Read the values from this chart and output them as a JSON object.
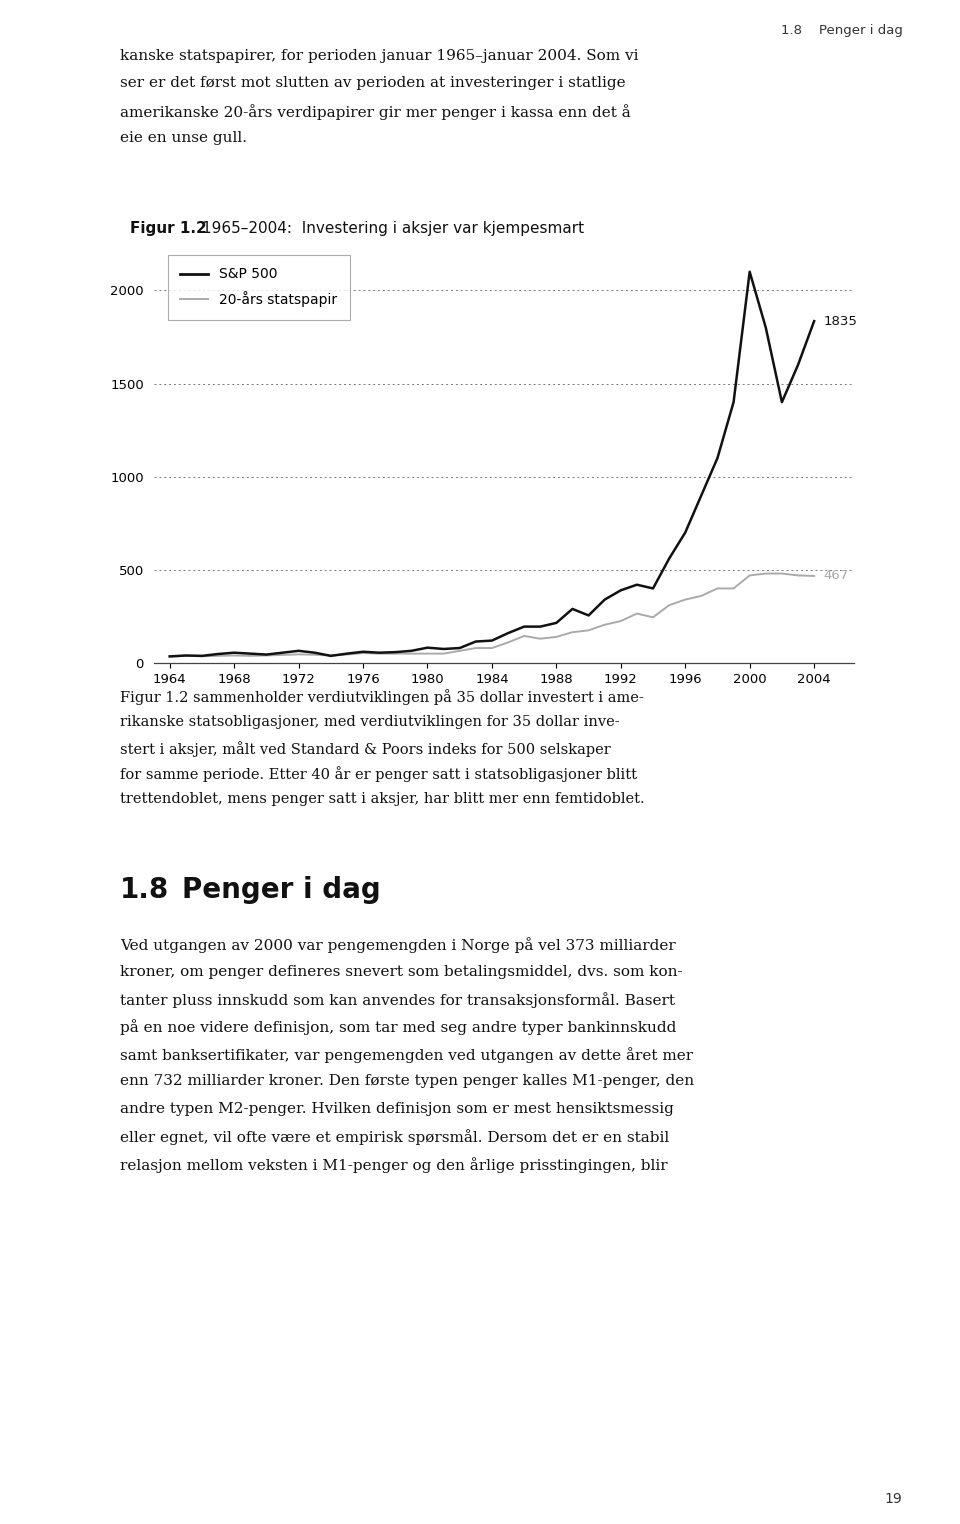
{
  "title_bold": "Figur 1.2",
  "title_normal": "1965–2004:  Investering i aksjer var kjempesmart",
  "sp500_x": [
    1964,
    1965,
    1966,
    1967,
    1968,
    1969,
    1970,
    1971,
    1972,
    1973,
    1974,
    1975,
    1976,
    1977,
    1978,
    1979,
    1980,
    1981,
    1982,
    1983,
    1984,
    1985,
    1986,
    1987,
    1988,
    1989,
    1990,
    1991,
    1992,
    1993,
    1994,
    1995,
    1996,
    1997,
    1998,
    1999,
    2000,
    2001,
    2002,
    2003,
    2004
  ],
  "sp500_y": [
    35,
    40,
    38,
    48,
    55,
    50,
    45,
    55,
    65,
    55,
    38,
    50,
    60,
    55,
    58,
    65,
    82,
    75,
    80,
    115,
    120,
    160,
    195,
    195,
    215,
    290,
    255,
    340,
    390,
    420,
    400,
    560,
    700,
    900,
    1100,
    1400,
    2100,
    1800,
    1400,
    1600,
    1835
  ],
  "bond_x": [
    1964,
    1965,
    1966,
    1967,
    1968,
    1969,
    1970,
    1971,
    1972,
    1973,
    1974,
    1975,
    1976,
    1977,
    1978,
    1979,
    1980,
    1981,
    1982,
    1983,
    1984,
    1985,
    1986,
    1987,
    1988,
    1989,
    1990,
    1991,
    1992,
    1993,
    1994,
    1995,
    1996,
    1997,
    1998,
    1999,
    2000,
    2001,
    2002,
    2003,
    2004
  ],
  "bond_y": [
    35,
    38,
    36,
    38,
    40,
    38,
    40,
    43,
    46,
    44,
    40,
    45,
    53,
    50,
    50,
    50,
    50,
    50,
    65,
    80,
    80,
    110,
    145,
    130,
    140,
    165,
    175,
    205,
    225,
    265,
    245,
    310,
    340,
    360,
    400,
    400,
    470,
    480,
    480,
    470,
    467
  ],
  "sp500_color": "#111111",
  "bond_color": "#aaaaaa",
  "sp500_label": "S&P 500",
  "bond_label": "20-års statspapir",
  "sp500_end_label": "1835",
  "bond_end_label": "467",
  "yticks": [
    0,
    500,
    1000,
    1500,
    2000
  ],
  "xticks": [
    1964,
    1968,
    1972,
    1976,
    1980,
    1984,
    1988,
    1992,
    1996,
    2000,
    2004
  ],
  "xlim": [
    1963,
    2006.5
  ],
  "ylim": [
    0,
    2250
  ],
  "grid_color": "#777777",
  "background_color": "#ffffff",
  "header_text": "kanske statspapirer, for perioden januar 1965–januar 2004. Som vi\nser er det først mot slutten av perioden at investeringer i statlige\namerikanske 20-års verdipapirer gir mer penger i kassa enn det å\neie en unse gull.",
  "page_header": "1.8    Penger i dag",
  "figure_caption_lines": [
    "Figur 1.2 sammenholder verdiutviklingen på 35 dollar investert i ame-",
    "rikanske statsobligasjoner, med verdiutviklingen for 35 dollar inve-",
    "stert i aksjer, målt ved Standard & Poors indeks for 500 selskaper",
    "for samme periode. Etter 40 år er penger satt i statsobligasjoner blitt",
    "trettendoblet, mens penger satt i aksjer, har blitt mer enn femtidoblet."
  ],
  "section_heading_num": "1.8",
  "section_heading_text": "Penger i dag",
  "body_text_lines": [
    "Ved utgangen av 2000 var pengemengden i Norge på vel 373 milliarder",
    "kroner, om penger defineres snevert som betalingsmiddel, dvs. som kon-",
    "tanter pluss innskudd som kan anvendes for transaksjonsformål. Basert",
    "på en noe videre definisjon, som tar med seg andre typer bankinnskudd",
    "samt banksertifikater, var pengemengden ved utgangen av dette året mer",
    "enn 732 milliarder kroner. Den første typen penger kalles M1-penger, den",
    "andre typen M2-penger. Hvilken definisjon som er mest hensiktsmessig",
    "eller egnet, vil ofte være et empirisk spørsmål. Dersom det er en stabil",
    "relasjon mellom veksten i M1-penger og den årlige prisstingingen, blir"
  ],
  "page_number": "19"
}
